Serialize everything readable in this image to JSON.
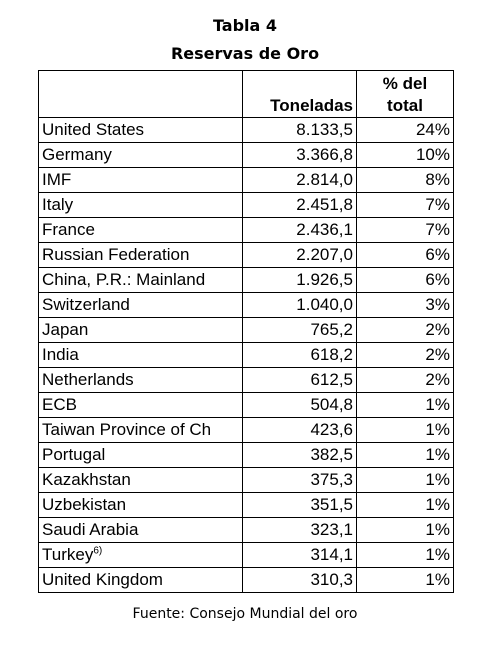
{
  "title_line1": "Tabla 4",
  "title_line2": "Reservas de Oro",
  "table": {
    "headers": [
      "",
      "Toneladas",
      "% del total"
    ],
    "header3_line1": "% del",
    "header3_line2": "total",
    "rows": [
      {
        "country": "United States",
        "tons": "8.133,5",
        "pct": "24%"
      },
      {
        "country": "Germany",
        "tons": "3.366,8",
        "pct": "10%"
      },
      {
        "country": "IMF",
        "tons": "2.814,0",
        "pct": "8%"
      },
      {
        "country": "Italy",
        "tons": "2.451,8",
        "pct": "7%"
      },
      {
        "country": "France",
        "tons": "2.436,1",
        "pct": "7%"
      },
      {
        "country": "Russian Federation",
        "tons": "2.207,0",
        "pct": "6%"
      },
      {
        "country": "China, P.R.: Mainland",
        "tons": "1.926,5",
        "pct": "6%"
      },
      {
        "country": "Switzerland",
        "tons": "1.040,0",
        "pct": "3%"
      },
      {
        "country": "Japan",
        "tons": "765,2",
        "pct": "2%"
      },
      {
        "country": "India",
        "tons": "618,2",
        "pct": "2%"
      },
      {
        "country": "Netherlands",
        "tons": "612,5",
        "pct": "2%"
      },
      {
        "country": "ECB",
        "tons": "504,8",
        "pct": "1%"
      },
      {
        "country": "Taiwan Province of Ch",
        "tons": "423,6",
        "pct": "1%"
      },
      {
        "country": "Portugal",
        "tons": "382,5",
        "pct": "1%"
      },
      {
        "country": "Kazakhstan",
        "tons": "375,3",
        "pct": "1%"
      },
      {
        "country": "Uzbekistan",
        "tons": "351,5",
        "pct": "1%"
      },
      {
        "country": "Saudi Arabia",
        "tons": "323,1",
        "pct": "1%"
      },
      {
        "country": "Turkey",
        "footnote": "6)",
        "tons": "314,1",
        "pct": "1%"
      },
      {
        "country": "United Kingdom",
        "tons": "310,3",
        "pct": "1%"
      }
    ]
  },
  "source": "Fuente: Consejo Mundial del oro"
}
